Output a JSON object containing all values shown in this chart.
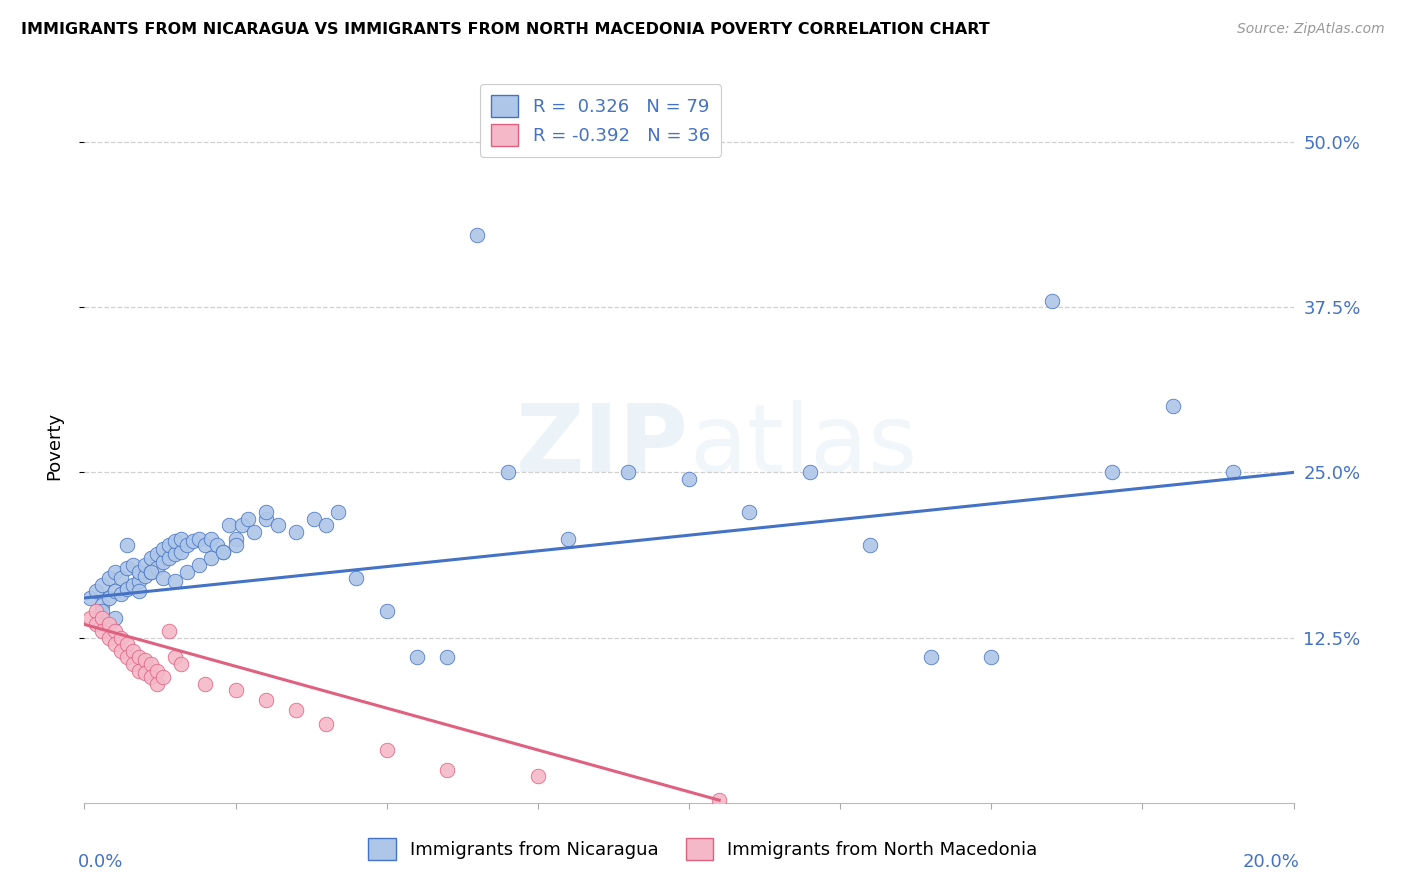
{
  "title": "IMMIGRANTS FROM NICARAGUA VS IMMIGRANTS FROM NORTH MACEDONIA POVERTY CORRELATION CHART",
  "source": "Source: ZipAtlas.com",
  "ylabel": "Poverty",
  "ytick_labels": [
    "12.5%",
    "25.0%",
    "37.5%",
    "50.0%"
  ],
  "ytick_values": [
    0.125,
    0.25,
    0.375,
    0.5
  ],
  "xlim": [
    0.0,
    0.2
  ],
  "ylim": [
    0.0,
    0.54
  ],
  "legend1_R": "0.326",
  "legend1_N": "79",
  "legend2_R": "-0.392",
  "legend2_N": "36",
  "blue_fill": "#aec6e8",
  "blue_edge": "#4472c4",
  "pink_fill": "#f4b8c8",
  "pink_edge": "#e06080",
  "blue_line": "#4472c4",
  "pink_line": "#e06080",
  "text_blue": "#4472c4",
  "grid_color": "#d0d0d0",
  "nicaragua_x": [
    0.001,
    0.002,
    0.003,
    0.003,
    0.004,
    0.004,
    0.005,
    0.005,
    0.006,
    0.006,
    0.007,
    0.007,
    0.008,
    0.008,
    0.009,
    0.009,
    0.01,
    0.01,
    0.011,
    0.011,
    0.012,
    0.012,
    0.013,
    0.013,
    0.014,
    0.014,
    0.015,
    0.015,
    0.016,
    0.016,
    0.017,
    0.018,
    0.019,
    0.02,
    0.021,
    0.022,
    0.023,
    0.024,
    0.025,
    0.026,
    0.028,
    0.03,
    0.032,
    0.035,
    0.038,
    0.04,
    0.042,
    0.045,
    0.05,
    0.055,
    0.06,
    0.065,
    0.07,
    0.08,
    0.09,
    0.1,
    0.11,
    0.12,
    0.13,
    0.14,
    0.15,
    0.16,
    0.17,
    0.18,
    0.19,
    0.003,
    0.005,
    0.007,
    0.009,
    0.011,
    0.013,
    0.015,
    0.017,
    0.019,
    0.021,
    0.023,
    0.025,
    0.027,
    0.03
  ],
  "nicaragua_y": [
    0.155,
    0.16,
    0.165,
    0.15,
    0.155,
    0.17,
    0.16,
    0.175,
    0.158,
    0.17,
    0.162,
    0.178,
    0.165,
    0.18,
    0.168,
    0.175,
    0.172,
    0.18,
    0.175,
    0.185,
    0.178,
    0.188,
    0.182,
    0.192,
    0.185,
    0.195,
    0.188,
    0.198,
    0.19,
    0.2,
    0.195,
    0.198,
    0.2,
    0.195,
    0.2,
    0.195,
    0.19,
    0.21,
    0.2,
    0.21,
    0.205,
    0.215,
    0.21,
    0.205,
    0.215,
    0.21,
    0.22,
    0.17,
    0.145,
    0.11,
    0.11,
    0.43,
    0.25,
    0.2,
    0.25,
    0.245,
    0.22,
    0.25,
    0.195,
    0.11,
    0.11,
    0.38,
    0.25,
    0.3,
    0.25,
    0.145,
    0.14,
    0.195,
    0.16,
    0.175,
    0.17,
    0.168,
    0.175,
    0.18,
    0.185,
    0.19,
    0.195,
    0.215,
    0.22
  ],
  "macedonia_x": [
    0.001,
    0.002,
    0.002,
    0.003,
    0.003,
    0.004,
    0.004,
    0.005,
    0.005,
    0.006,
    0.006,
    0.007,
    0.007,
    0.008,
    0.008,
    0.009,
    0.009,
    0.01,
    0.01,
    0.011,
    0.011,
    0.012,
    0.012,
    0.013,
    0.014,
    0.015,
    0.016,
    0.02,
    0.025,
    0.03,
    0.035,
    0.04,
    0.05,
    0.06,
    0.075,
    0.105
  ],
  "macedonia_y": [
    0.14,
    0.145,
    0.135,
    0.14,
    0.13,
    0.135,
    0.125,
    0.13,
    0.12,
    0.125,
    0.115,
    0.12,
    0.11,
    0.115,
    0.105,
    0.11,
    0.1,
    0.108,
    0.098,
    0.105,
    0.095,
    0.1,
    0.09,
    0.095,
    0.13,
    0.11,
    0.105,
    0.09,
    0.085,
    0.078,
    0.07,
    0.06,
    0.04,
    0.025,
    0.02,
    0.002
  ],
  "blue_line_x": [
    0.0,
    0.2
  ],
  "blue_line_y": [
    0.155,
    0.25
  ],
  "pink_line_x": [
    0.0,
    0.105
  ],
  "pink_line_y": [
    0.135,
    0.002
  ]
}
